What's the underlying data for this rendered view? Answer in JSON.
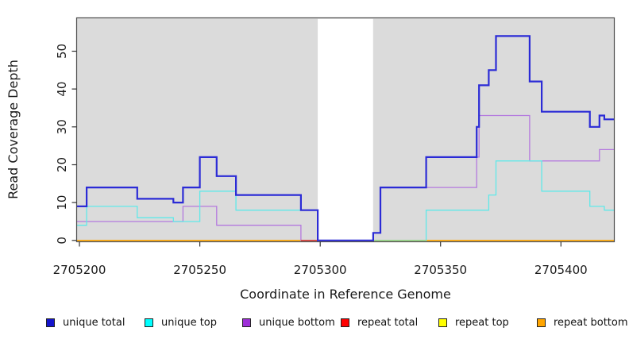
{
  "chart_data": {
    "type": "line",
    "subtype": "step-post-coverage-plot",
    "title": "",
    "xlabel": "Coordinate in Reference Genome",
    "ylabel": "Read Coverage Depth",
    "xlim": [
      2705199,
      2705422
    ],
    "ylim": [
      0,
      58.7
    ],
    "x_ticks": [
      2705200,
      2705250,
      2705300,
      2705350,
      2705400
    ],
    "y_ticks": [
      0,
      10,
      20,
      30,
      40,
      50
    ],
    "grid": "off",
    "panel_bg_color": "#dbdbdb",
    "panel_border_color": "#4d4d4d",
    "gap_region": {
      "x_start": 2705299,
      "x_end": 2705322,
      "color": "#ffffff"
    },
    "legend_position": "bottom",
    "series": [
      {
        "name": "repeat total",
        "line_color": "#dd1111",
        "legend_color": "#ff0000",
        "line_width": 1.2,
        "step": "post",
        "points": [
          [
            2705199,
            0
          ]
        ]
      },
      {
        "name": "repeat top",
        "line_color": "#ffff00",
        "legend_color": "#ffff00",
        "line_width": 1.2,
        "step": "post",
        "points": [
          [
            2705199,
            0
          ]
        ]
      },
      {
        "name": "repeat bottom",
        "line_color": "#ffa500",
        "legend_color": "#ffa500",
        "line_width": 1.6,
        "step": "post",
        "points": [
          [
            2705199,
            0
          ]
        ]
      },
      {
        "name": "unique bottom",
        "line_color": "#b479de",
        "legend_color": "#9e2fd8",
        "line_width": 1.3,
        "step": "post",
        "points": [
          [
            2705199,
            5
          ],
          [
            2705243,
            9
          ],
          [
            2705257,
            4
          ],
          [
            2705292,
            0
          ],
          [
            2705322,
            2
          ],
          [
            2705325,
            14
          ],
          [
            2705365,
            22
          ],
          [
            2705366,
            33
          ],
          [
            2705387,
            21
          ],
          [
            2705416,
            24
          ]
        ]
      },
      {
        "name": "unique top",
        "line_color": "#5fe9e9",
        "legend_color": "#00ffff",
        "line_width": 1.3,
        "step": "post",
        "points": [
          [
            2705199,
            4
          ],
          [
            2705203,
            9
          ],
          [
            2705224,
            6
          ],
          [
            2705239,
            5
          ],
          [
            2705250,
            13
          ],
          [
            2705265,
            8
          ],
          [
            2705299,
            0
          ],
          [
            2705344,
            8
          ],
          [
            2705370,
            12
          ],
          [
            2705373,
            21
          ],
          [
            2705392,
            13
          ],
          [
            2705412,
            9
          ],
          [
            2705418,
            8
          ]
        ]
      },
      {
        "name": "unique total",
        "line_color": "#2b2bd6",
        "legend_color": "#1414cc",
        "line_width": 2.2,
        "step": "post",
        "points": [
          [
            2705199,
            9
          ],
          [
            2705203,
            14
          ],
          [
            2705224,
            11
          ],
          [
            2705239,
            10
          ],
          [
            2705243,
            14
          ],
          [
            2705250,
            22
          ],
          [
            2705257,
            17
          ],
          [
            2705265,
            12
          ],
          [
            2705292,
            8
          ],
          [
            2705299,
            0
          ],
          [
            2705322,
            2
          ],
          [
            2705325,
            14
          ],
          [
            2705344,
            22
          ],
          [
            2705365,
            30
          ],
          [
            2705366,
            41
          ],
          [
            2705370,
            45
          ],
          [
            2705373,
            54
          ],
          [
            2705387,
            42
          ],
          [
            2705392,
            34
          ],
          [
            2705412,
            30
          ],
          [
            2705416,
            33
          ],
          [
            2705418,
            32
          ]
        ]
      }
    ],
    "baseline_overlap_segments": [
      {
        "x_start": 2705292,
        "x_end": 2705299,
        "color": "#d13a3a"
      },
      {
        "x_start": 2705322,
        "x_end": 2705344,
        "color": "#8fd489"
      }
    ]
  },
  "legend": {
    "items": [
      {
        "label": "unique total"
      },
      {
        "label": "unique top"
      },
      {
        "label": "unique bottom"
      },
      {
        "label": "repeat total"
      },
      {
        "label": "repeat top"
      },
      {
        "label": "repeat bottom"
      }
    ]
  }
}
